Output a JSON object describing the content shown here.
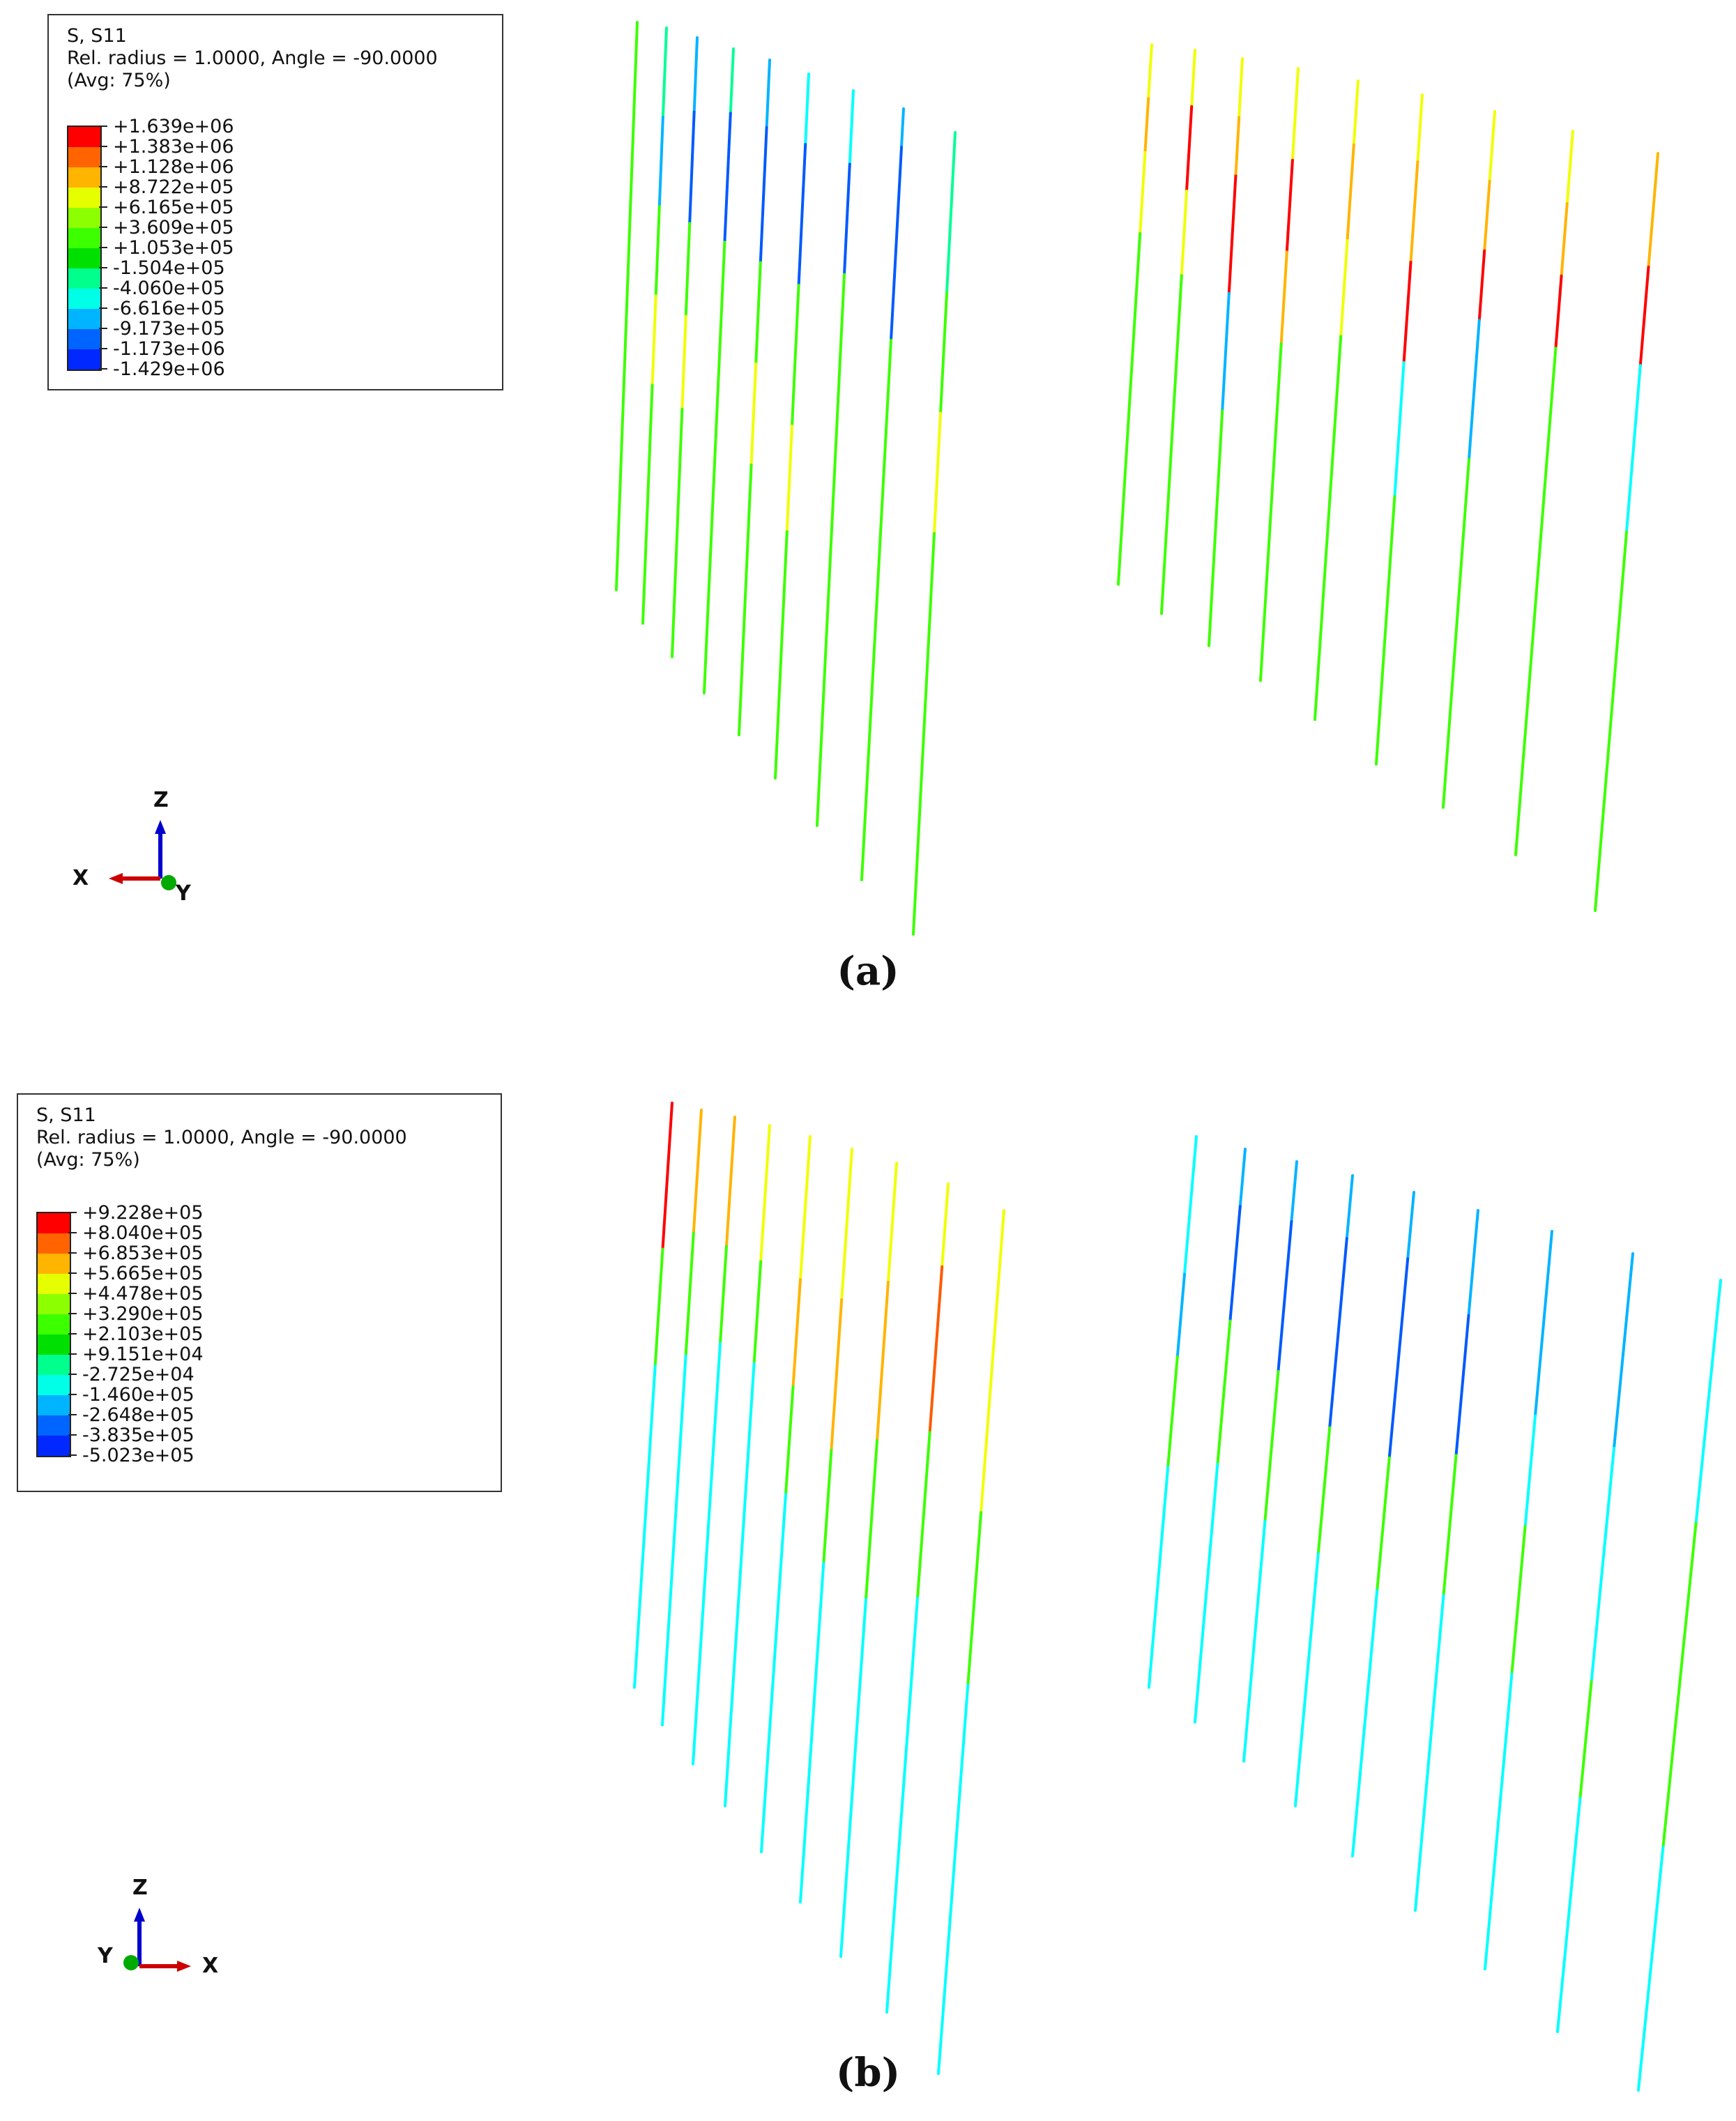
{
  "panels": [
    {
      "id": "a",
      "legend": {
        "line1": "S, S11",
        "line2": "Rel. radius = 1.0000, Angle = -90.0000",
        "line3": "(Avg: 75%)",
        "values": [
          "+1.639e+06",
          "+1.383e+06",
          "+1.128e+06",
          "+8.722e+05",
          "+6.165e+05",
          "+3.609e+05",
          "+1.053e+05",
          "-1.504e+05",
          "-4.060e+05",
          "-6.616e+05",
          "-9.173e+05",
          "-1.173e+06",
          "-1.429e+06"
        ]
      },
      "axes": {
        "up": "Z",
        "horizontal": "X",
        "normal": "Y"
      },
      "caption": "(a)"
    },
    {
      "id": "b",
      "legend": {
        "line1": "S, S11",
        "line2": "Rel. radius = 1.0000, Angle = -90.0000",
        "line3": "(Avg: 75%)",
        "values": [
          "+9.228e+05",
          "+8.040e+05",
          "+6.853e+05",
          "+5.665e+05",
          "+4.478e+05",
          "+3.290e+05",
          "+2.103e+05",
          "+9.151e+04",
          "-2.725e+04",
          "-1.460e+05",
          "-2.648e+05",
          "-3.835e+05",
          "-5.023e+05"
        ]
      },
      "axes": {
        "up": "Z",
        "horizontal": "X",
        "normal": "Y"
      },
      "caption": "(b)"
    }
  ],
  "colors": {
    "contour": [
      "#ff0000",
      "#ff5a00",
      "#ffb400",
      "#f0ff00",
      "#96ff00",
      "#3cff00",
      "#00ff3c",
      "#00ff96",
      "#00ffff",
      "#00b4ff",
      "#005aff",
      "#0000ff",
      "#0000ff"
    ],
    "scale": [
      "#ff0000",
      "#ff6400",
      "#ffb400",
      "#e6ff00",
      "#8cff00",
      "#3cff00",
      "#00e000",
      "#00ff8c",
      "#00ffe6",
      "#00b4ff",
      "#0064ff",
      "#0028ff",
      "#0000e6"
    ],
    "axis_z": "#0000cc",
    "axis_x": "#cc0000",
    "axis_y": "#00aa00"
  }
}
